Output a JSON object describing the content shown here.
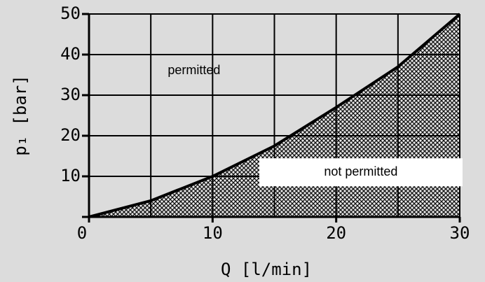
{
  "chart_data": {
    "type": "area",
    "x": [
      0,
      5,
      10,
      15,
      20,
      25,
      30
    ],
    "series": [
      {
        "color": "#000000",
        "values": [
          0,
          4,
          10,
          17.5,
          27,
          37,
          50
        ]
      }
    ],
    "xlabel": "Q [l/min]",
    "ylabel": "p₁ [bar]",
    "xlim": [
      0,
      30
    ],
    "xticks": [
      0,
      10,
      20,
      30
    ],
    "xgrid": [
      5,
      10,
      15,
      20,
      25,
      30
    ],
    "ylim": [
      0,
      50
    ],
    "yticks": [
      10,
      20,
      30,
      40,
      50
    ],
    "grid": true,
    "annotations": [
      {
        "text": "permitted",
        "x": 8.5,
        "y": 36
      },
      {
        "text": "not permitted",
        "x": 22,
        "y": 11
      }
    ]
  }
}
